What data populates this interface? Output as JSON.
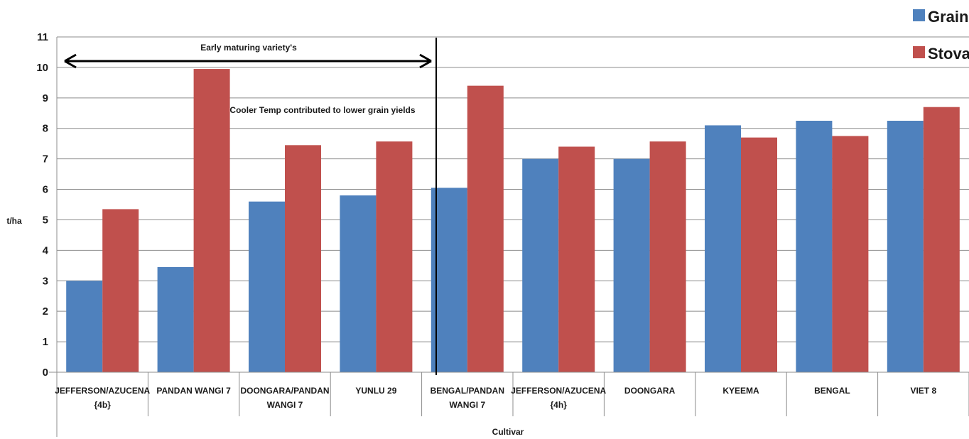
{
  "chart_data": {
    "type": "bar",
    "xlabel": "Cultivar",
    "ylabel": "t/ha",
    "ylim": [
      0,
      11
    ],
    "yticks": [
      0,
      1,
      2,
      3,
      4,
      5,
      6,
      7,
      8,
      9,
      10,
      11
    ],
    "grid": true,
    "legend_position": "top-right",
    "categories": [
      [
        "JEFFERSON/AZUCENA",
        "{4b}"
      ],
      [
        "PANDAN WANGI 7"
      ],
      [
        "DOONGARA/PANDAN",
        "WANGI 7"
      ],
      [
        "YUNLU 29"
      ],
      [
        "BENGAL/PANDAN",
        "WANGI 7"
      ],
      [
        "JEFFERSON/AZUCENA",
        "{4h}"
      ],
      [
        "DOONGARA"
      ],
      [
        "KYEEMA"
      ],
      [
        "BENGAL"
      ],
      [
        "VIET 8"
      ]
    ],
    "series": [
      {
        "name": "Grain",
        "color": "#4F81BD",
        "values": [
          3.0,
          3.45,
          5.6,
          5.8,
          6.05,
          7.0,
          7.0,
          8.1,
          8.25,
          8.25
        ]
      },
      {
        "name": "Stova",
        "color": "#C0504D",
        "values": [
          5.35,
          9.95,
          7.45,
          7.57,
          9.4,
          7.4,
          7.57,
          7.7,
          7.75,
          8.7
        ]
      }
    ],
    "annotations": {
      "early": "Early maturing variety's",
      "cooler": "Cooler Temp contributed to lower grain yields"
    }
  }
}
